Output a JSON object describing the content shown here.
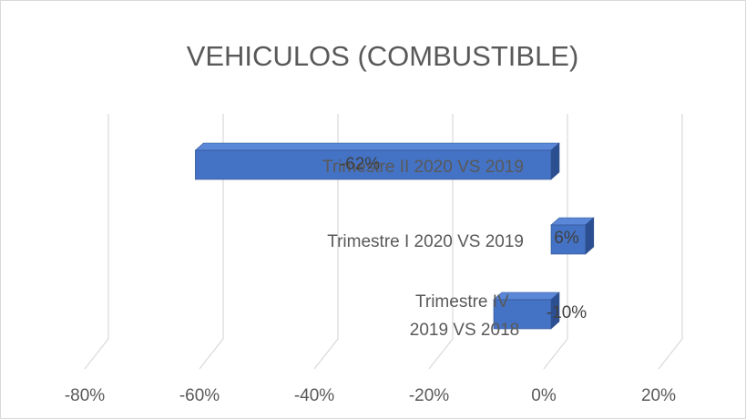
{
  "chart_data": {
    "type": "bar3d_horizontal",
    "title": "VEHICULOS (COMBUSTIBLE)",
    "categories": [
      "Trimestre IV 2019 VS 2018",
      "Trimestre I 2020 VS 2019",
      "Trimestre II 2020 VS 2019"
    ],
    "values": [
      -10,
      6,
      -62
    ],
    "value_labels": [
      "-10%",
      "6%",
      "-62%"
    ],
    "color": "#4472c4",
    "xlim": [
      -80,
      20
    ],
    "xticks": [
      {
        "value": -80,
        "label": "-80%"
      },
      {
        "value": -60,
        "label": "-60%"
      },
      {
        "value": -40,
        "label": "-40%"
      },
      {
        "value": -20,
        "label": "-20%"
      },
      {
        "value": 0,
        "label": "0%"
      },
      {
        "value": 20,
        "label": "20%"
      }
    ],
    "grid": true
  }
}
